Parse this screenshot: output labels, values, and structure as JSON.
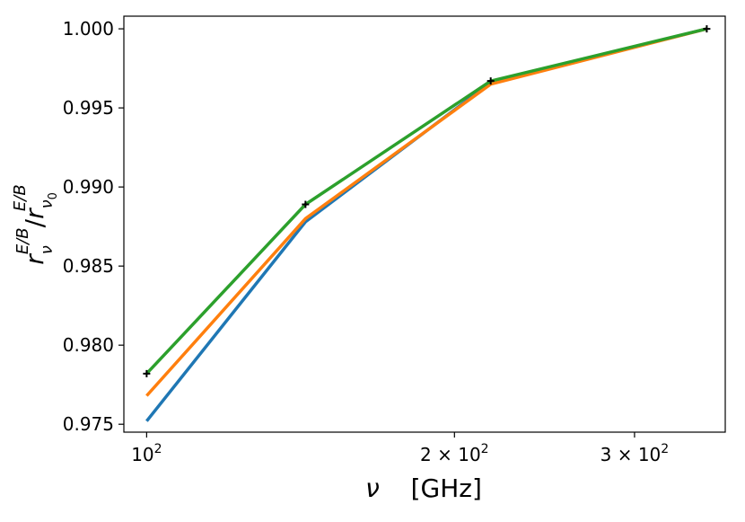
{
  "chart_data": {
    "type": "line",
    "x_scale": "log",
    "grid": false,
    "legend": "none",
    "xlabel": {
      "symbol": "ν",
      "unit": "[GHz]"
    },
    "ylabel": {
      "base": "r",
      "sub": "ν",
      "sup": "E/B",
      "sep": "/",
      "sub0": "ν",
      "sub0_index": "0"
    },
    "xlim": [
      95,
      368
    ],
    "ylim": [
      0.9745,
      1.0008
    ],
    "x_ticks": [
      {
        "value": 100,
        "mantissa": "10",
        "exponent": "2",
        "prefix": ""
      },
      {
        "value": 200,
        "mantissa": "10",
        "exponent": "2",
        "prefix": "2 × "
      },
      {
        "value": 300,
        "mantissa": "10",
        "exponent": "2",
        "prefix": "3 × "
      }
    ],
    "y_ticks": [
      {
        "value": 0.975,
        "label": "0.975"
      },
      {
        "value": 0.98,
        "label": "0.980"
      },
      {
        "value": 0.985,
        "label": "0.985"
      },
      {
        "value": 0.99,
        "label": "0.990"
      },
      {
        "value": 0.995,
        "label": "0.995"
      },
      {
        "value": 1.0,
        "label": "1.000"
      }
    ],
    "x": [
      100,
      143,
      217,
      353
    ],
    "series": [
      {
        "color": "#1f77b4",
        "values": [
          0.9752,
          0.9878,
          0.9966,
          1.0
        ]
      },
      {
        "color": "#ff7f0e",
        "values": [
          0.9768,
          0.988,
          0.9965,
          1.0
        ]
      },
      {
        "color": "#2ca02c",
        "values": [
          0.9782,
          0.9889,
          0.9967,
          1.0
        ]
      }
    ],
    "markers": {
      "symbol": "+",
      "color": "#000000",
      "values": [
        0.9782,
        0.9889,
        0.9967,
        1.0
      ]
    }
  }
}
